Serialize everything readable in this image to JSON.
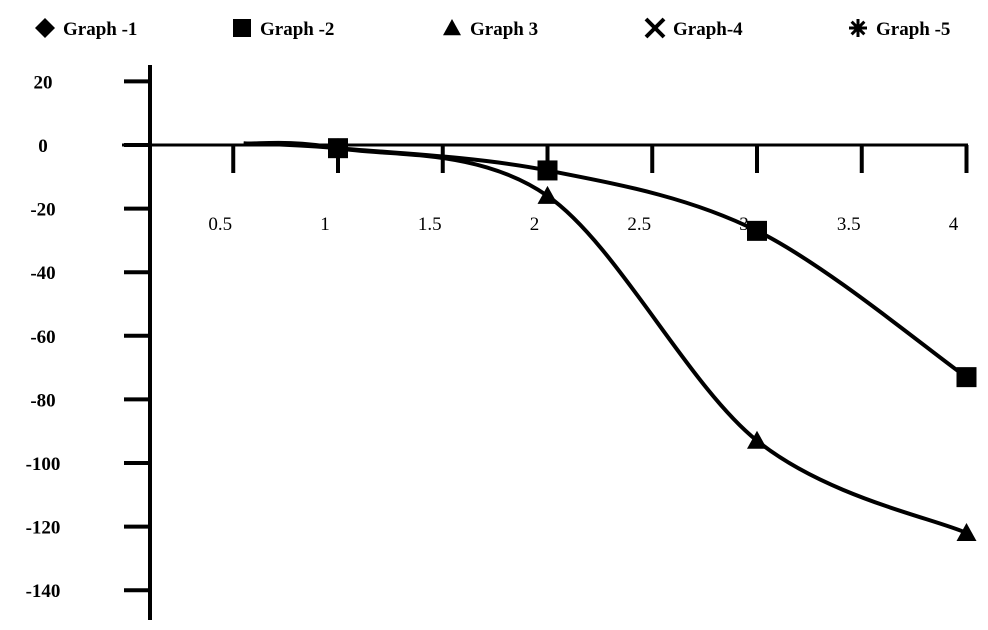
{
  "chart_data": {
    "type": "line",
    "title": "",
    "xlabel": "",
    "ylabel": "",
    "xlim": [
      0,
      4.2
    ],
    "ylim": [
      -140,
      25
    ],
    "x_ticks": [
      0.5,
      1,
      1.5,
      2,
      2.5,
      3,
      3.5,
      4
    ],
    "x_tick_labels": [
      "0.5",
      "1",
      "1.5",
      "2",
      "2.5",
      "3",
      "3.5",
      "4"
    ],
    "y_ticks": [
      20,
      0,
      -20,
      -40,
      -60,
      -80,
      -100,
      -120,
      -140
    ],
    "y_tick_labels": [
      "20",
      "0",
      "-20",
      "-40",
      "-60",
      "-80",
      "-100",
      "-120",
      "-140"
    ],
    "legend_position": "top",
    "grid": false,
    "legend": [
      {
        "name": "Graph -1",
        "marker": "diamond"
      },
      {
        "name": "Graph -2",
        "marker": "square"
      },
      {
        "name": "Graph 3",
        "marker": "triangle"
      },
      {
        "name": "Graph-4",
        "marker": "x"
      },
      {
        "name": "Graph -5",
        "marker": "asterisk"
      }
    ],
    "series": [
      {
        "name": "Graph -2",
        "marker": "square",
        "color": "#000000",
        "x": [
          1,
          2,
          3,
          4
        ],
        "y": [
          -1,
          -8,
          -27,
          -73
        ]
      },
      {
        "name": "Graph 3",
        "marker": "triangle",
        "color": "#000000",
        "x": [
          1,
          2,
          3,
          4
        ],
        "y": [
          -1,
          -16,
          -93,
          -122
        ]
      }
    ]
  }
}
